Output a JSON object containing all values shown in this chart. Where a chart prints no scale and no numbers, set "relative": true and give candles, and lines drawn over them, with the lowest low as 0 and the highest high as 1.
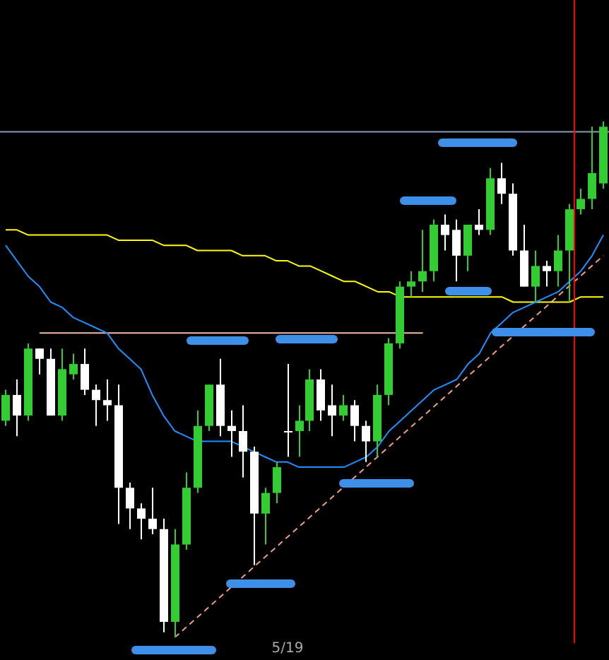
{
  "chart_data": {
    "type": "candlestick",
    "relative": true,
    "tick_labels": "x",
    "categories": [
      null,
      null,
      null,
      null,
      null,
      null,
      null,
      null,
      null,
      null,
      null,
      null,
      null,
      null,
      null,
      null,
      null,
      null,
      null,
      null,
      null,
      null,
      null,
      null,
      null,
      "5/19",
      null,
      null,
      null,
      null,
      null,
      null,
      null,
      null,
      null,
      null,
      null,
      null,
      null,
      null,
      null,
      null,
      null,
      null,
      null,
      null,
      null,
      null,
      null,
      null,
      null,
      null,
      null,
      null
    ],
    "ohlc": [
      [
        0.42,
        0.48,
        0.41,
        0.47
      ],
      [
        0.47,
        0.5,
        0.39,
        0.43
      ],
      [
        0.43,
        0.57,
        0.42,
        0.56
      ],
      [
        0.56,
        0.56,
        0.51,
        0.54
      ],
      [
        0.54,
        0.56,
        0.43,
        0.43
      ],
      [
        0.43,
        0.56,
        0.42,
        0.52
      ],
      [
        0.51,
        0.55,
        0.5,
        0.53
      ],
      [
        0.53,
        0.56,
        0.47,
        0.48
      ],
      [
        0.48,
        0.49,
        0.41,
        0.46
      ],
      [
        0.46,
        0.5,
        0.42,
        0.45
      ],
      [
        0.45,
        0.49,
        0.22,
        0.29
      ],
      [
        0.29,
        0.3,
        0.21,
        0.25
      ],
      [
        0.25,
        0.26,
        0.19,
        0.23
      ],
      [
        0.23,
        0.29,
        0.2,
        0.21
      ],
      [
        0.21,
        0.23,
        0.01,
        0.03
      ],
      [
        0.03,
        0.21,
        0,
        0.18
      ],
      [
        0.18,
        0.32,
        0.17,
        0.29
      ],
      [
        0.29,
        0.44,
        0.28,
        0.41
      ],
      [
        0.41,
        0.49,
        0.4,
        0.49
      ],
      [
        0.49,
        0.54,
        0.39,
        0.41
      ],
      [
        0.41,
        0.44,
        0.35,
        0.4
      ],
      [
        0.4,
        0.45,
        0.31,
        0.36
      ],
      [
        0.36,
        0.37,
        0.14,
        0.24
      ],
      [
        0.24,
        0.29,
        0.18,
        0.28
      ],
      [
        0.28,
        0.34,
        0.26,
        0.33
      ],
      [
        0.4,
        0.53,
        0.35,
        0.4
      ],
      [
        0.4,
        0.45,
        0.35,
        0.42
      ],
      [
        0.42,
        0.52,
        0.4,
        0.5
      ],
      [
        0.5,
        0.52,
        0.42,
        0.44
      ],
      [
        0.45,
        0.49,
        0.39,
        0.43
      ],
      [
        0.43,
        0.47,
        0.42,
        0.45
      ],
      [
        0.45,
        0.46,
        0.38,
        0.41
      ],
      [
        0.41,
        0.42,
        0.34,
        0.38
      ],
      [
        0.38,
        0.49,
        0.35,
        0.47
      ],
      [
        0.47,
        0.58,
        0.45,
        0.57
      ],
      [
        0.57,
        0.69,
        0.56,
        0.68
      ],
      [
        0.68,
        0.71,
        0.66,
        0.69
      ],
      [
        0.69,
        0.79,
        0.67,
        0.71
      ],
      [
        0.71,
        0.81,
        0.69,
        0.8
      ],
      [
        0.8,
        0.82,
        0.75,
        0.78
      ],
      [
        0.79,
        0.81,
        0.69,
        0.74
      ],
      [
        0.74,
        0.8,
        0.71,
        0.8
      ],
      [
        0.8,
        0.83,
        0.78,
        0.79
      ],
      [
        0.79,
        0.91,
        0.78,
        0.89
      ],
      [
        0.89,
        0.92,
        0.84,
        0.86
      ],
      [
        0.86,
        0.88,
        0.74,
        0.75
      ],
      [
        0.75,
        0.8,
        0.68,
        0.68
      ],
      [
        0.68,
        0.75,
        0.65,
        0.72
      ],
      [
        0.72,
        0.73,
        0.68,
        0.71
      ],
      [
        0.71,
        0.78,
        0.68,
        0.75
      ],
      [
        0.75,
        0.84,
        0.65,
        0.83
      ],
      [
        0.83,
        0.87,
        0.82,
        0.85
      ],
      [
        0.85,
        0.99,
        0.83,
        0.9
      ],
      [
        0.88,
        1,
        0.87,
        0.99
      ]
    ],
    "colors": [
      "#33cc33",
      "#ffffff",
      "#33cc33",
      "#ffffff",
      "#ffffff",
      "#33cc33",
      "#33cc33",
      "#ffffff",
      "#ffffff",
      "#ffffff",
      "#ffffff",
      "#ffffff",
      "#ffffff",
      "#ffffff",
      "#ffffff",
      "#33cc33",
      "#33cc33",
      "#33cc33",
      "#33cc33",
      "#ffffff",
      "#ffffff",
      "#ffffff",
      "#ffffff",
      "#33cc33",
      "#33cc33",
      "#ffffff",
      "#33cc33",
      "#33cc33",
      "#ffffff",
      "#ffffff",
      "#33cc33",
      "#ffffff",
      "#ffffff",
      "#33cc33",
      "#33cc33",
      "#33cc33",
      "#33cc33",
      "#33cc33",
      "#33cc33",
      "#ffffff",
      "#ffffff",
      "#33cc33",
      "#ffffff",
      "#33cc33",
      "#ffffff",
      "#ffffff",
      "#ffffff",
      "#33cc33",
      "#ffffff",
      "#33cc33",
      "#33cc33",
      "#33cc33",
      "#33cc33",
      "#33cc33"
    ],
    "series": [
      {
        "type": "line",
        "color": "#1e90ff",
        "values": [
          0.76,
          0.73,
          0.7,
          0.68,
          0.65,
          0.64,
          0.62,
          0.61,
          0.6,
          0.59,
          0.56,
          0.54,
          0.52,
          0.47,
          0.43,
          0.4,
          0.39,
          0.38,
          0.38,
          0.38,
          0.38,
          0.37,
          0.36,
          0.35,
          0.34,
          0.34,
          0.33,
          0.33,
          0.33,
          0.33,
          0.33,
          0.34,
          0.35,
          0.37,
          0.4,
          0.42,
          0.44,
          0.46,
          0.48,
          0.49,
          0.5,
          0.53,
          0.55,
          0.59,
          0.61,
          0.63,
          0.64,
          0.65,
          0.66,
          0.67,
          0.69,
          0.71,
          0.74,
          0.78
        ]
      },
      {
        "type": "line",
        "color": "#ffff00",
        "values": [
          0.79,
          0.79,
          0.78,
          0.78,
          0.78,
          0.78,
          0.78,
          0.78,
          0.78,
          0.78,
          0.77,
          0.77,
          0.77,
          0.77,
          0.76,
          0.76,
          0.76,
          0.75,
          0.75,
          0.75,
          0.75,
          0.74,
          0.74,
          0.74,
          0.73,
          0.73,
          0.72,
          0.72,
          0.71,
          0.7,
          0.69,
          0.69,
          0.68,
          0.67,
          0.67,
          0.66,
          0.66,
          0.66,
          0.66,
          0.66,
          0.66,
          0.66,
          0.66,
          0.66,
          0.66,
          0.65,
          0.65,
          0.65,
          0.65,
          0.65,
          0.65,
          0.66,
          0.66,
          0.66
        ]
      },
      {
        "type": "line",
        "color": "#f0a080",
        "line_style": "dashed",
        "values": [
          null,
          null,
          null,
          null,
          null,
          null,
          null,
          null,
          null,
          null,
          null,
          null,
          null,
          null,
          null,
          0,
          null,
          null,
          null,
          null,
          null,
          null,
          null,
          null,
          null,
          null,
          null,
          null,
          null,
          null,
          null,
          null,
          null,
          null,
          null,
          null,
          null,
          null,
          null,
          null,
          null,
          null,
          null,
          null,
          null,
          null,
          null,
          null,
          null,
          null,
          null,
          null,
          null,
          0.74
        ]
      },
      {
        "type": "line",
        "color": "#f4b8a8",
        "values": [
          null,
          null,
          null,
          0.59,
          null,
          null,
          null,
          null,
          null,
          null,
          null,
          null,
          null,
          null,
          null,
          null,
          null,
          null,
          null,
          null,
          null,
          null,
          null,
          null,
          null,
          null,
          null,
          null,
          null,
          null,
          null,
          null,
          null,
          null,
          null,
          null,
          null,
          0.59,
          null,
          null,
          null,
          null,
          null,
          null,
          null,
          null,
          null,
          null,
          null,
          null,
          null,
          null,
          null,
          null
        ]
      }
    ],
    "ref_lines": [
      {
        "axis": "y",
        "value": 0.98,
        "color": "#8899bb"
      }
    ]
  }
}
